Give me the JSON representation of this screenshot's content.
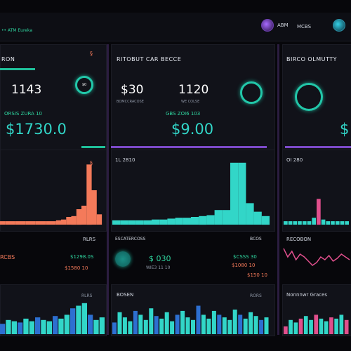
{
  "header": {
    "brand": "•• ATM Eureka",
    "user1": "ABM",
    "user2": "MCBS"
  },
  "panel1": {
    "title": "RON",
    "big_value": "1143",
    "subtitle": "ORSIS ZURA 10",
    "teal_value": "$1730.0",
    "mini_title": "",
    "row_values": [
      "RCBS",
      "$1298.0S",
      "$1580 10"
    ],
    "ring_label": "$0",
    "bottom_label": "RLRS",
    "glyph": "§"
  },
  "panel2": {
    "title": "RITOBUT CAR BECCE",
    "value_a": "$30",
    "value_b": "1120",
    "caption_a": "BOMCCRACOSE",
    "caption_b": "WE COLSE",
    "subtitle": "GBS ZOI6 103",
    "teal_value": "$9.00",
    "mini_title": "1L 2810",
    "left_caption": "ESCATERCOSS",
    "chip_value": "$ 030",
    "chip_caption": "WIE3 11 10",
    "right_caption": "BCOS",
    "row_values": [
      "$CSSS 30",
      "$1080 10",
      "$150 10"
    ],
    "bottom_label": "BOSEN",
    "bottom_right": "RORS"
  },
  "panel3": {
    "title": "BIRCO OLMUTTY",
    "teal_value": "$",
    "mini_title": "OI 280",
    "row_title": "RECOBON",
    "bottom_label": "Nonnnwr Graces"
  },
  "colors": {
    "teal": "#32d6c8",
    "coral": "#f47a5a",
    "violet": "#7c4ac9",
    "pink": "#e04f8c"
  },
  "charts": {
    "p1_bars": [
      4,
      4,
      4,
      4,
      4,
      4,
      4,
      4,
      4,
      4,
      4,
      5,
      6,
      9,
      10,
      18,
      22,
      70,
      40,
      12
    ],
    "p2_bars": [
      5,
      5,
      5,
      5,
      5,
      6,
      6,
      7,
      8,
      8,
      9,
      10,
      11,
      17,
      17,
      72,
      72,
      25,
      15,
      10
    ],
    "p3_bars": [
      4,
      4,
      4,
      4,
      4,
      4,
      8,
      30,
      6,
      4,
      4,
      4,
      4,
      4
    ],
    "p3_line": [
      18,
      12,
      16,
      10,
      14,
      12,
      9,
      6,
      8,
      12,
      10,
      13,
      9,
      11,
      14,
      12,
      10
    ],
    "eq1": [
      16,
      22,
      20,
      18,
      24,
      20,
      26,
      22,
      20,
      28,
      24,
      30,
      40,
      44,
      48,
      30,
      22,
      26
    ],
    "eq2": [
      18,
      34,
      26,
      20,
      36,
      30,
      22,
      40,
      28,
      24,
      34,
      20,
      30,
      36,
      26,
      22,
      44,
      30,
      24,
      36,
      30,
      26,
      22,
      38,
      30,
      24,
      34,
      28,
      22,
      26
    ],
    "eq3": [
      12,
      22,
      18,
      24,
      28,
      22,
      30,
      24,
      20,
      26,
      24,
      30,
      22
    ]
  }
}
